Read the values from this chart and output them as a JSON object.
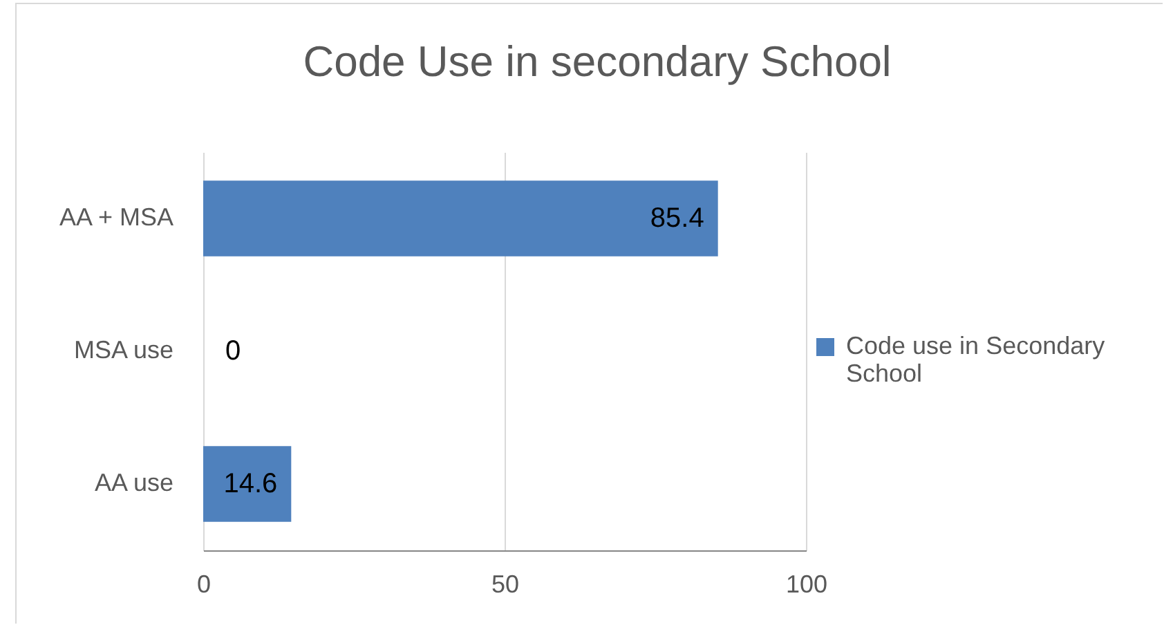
{
  "chart_data": {
    "type": "bar",
    "orientation": "horizontal",
    "title": "Code Use in secondary School",
    "categories": [
      "AA + MSA",
      "MSA use",
      "AA use"
    ],
    "series": [
      {
        "name": "Code use in Secondary School",
        "color": "#4f81bd",
        "values": [
          85.4,
          0,
          14.6
        ]
      }
    ],
    "xlim": [
      0,
      100
    ],
    "xticks": [
      0,
      50,
      100
    ],
    "grid": "x",
    "legend": "right",
    "data_labels": true
  }
}
